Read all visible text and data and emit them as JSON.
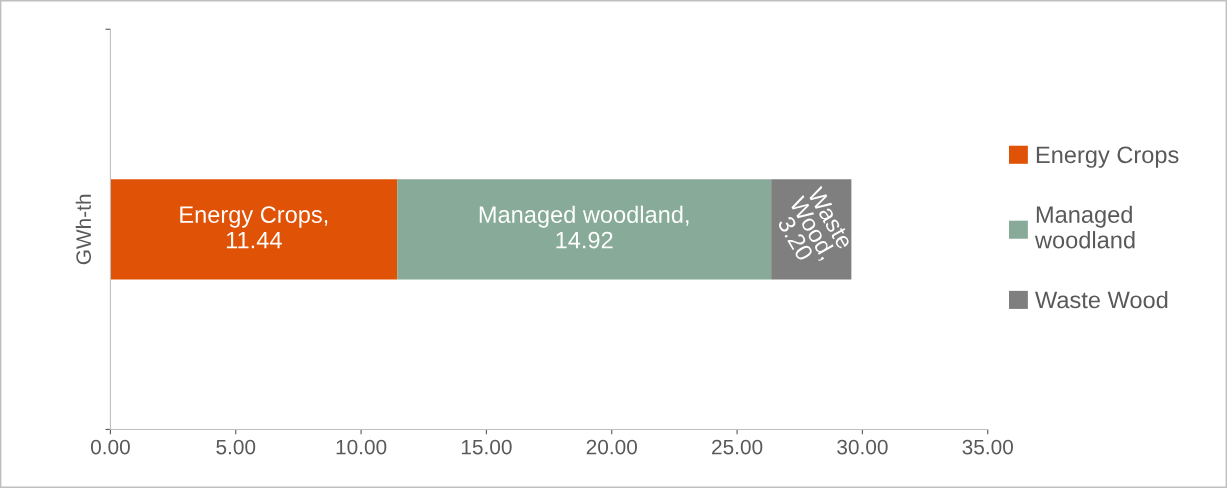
{
  "chart_data": {
    "type": "bar",
    "orientation": "horizontal",
    "stacked": true,
    "categories": [
      null
    ],
    "ylabel": "GWh-th",
    "series": [
      {
        "name": "Energy Crops",
        "color": "#e05206",
        "values": [
          11.44
        ],
        "value_labels": [
          "Energy Crops, 11.44"
        ]
      },
      {
        "name": "Managed woodland",
        "color": "#87ab98",
        "values": [
          14.92
        ],
        "value_labels": [
          "Managed woodland, 14.92"
        ]
      },
      {
        "name": "Waste Wood",
        "color": "#7f7f7f",
        "values": [
          3.2
        ],
        "value_labels": [
          "Waste Wood, 3.20"
        ]
      }
    ],
    "xlim": [
      0,
      35
    ],
    "xticks": [
      {
        "value": 0,
        "label": "0.00"
      },
      {
        "value": 5,
        "label": "5.00"
      },
      {
        "value": 10,
        "label": "10.00"
      },
      {
        "value": 15,
        "label": "15.00"
      },
      {
        "value": 20,
        "label": "20.00"
      },
      {
        "value": 25,
        "label": "25.00"
      },
      {
        "value": 30,
        "label": "30.00"
      },
      {
        "value": 35,
        "label": "35.00"
      }
    ],
    "grid": false,
    "legend": "right"
  }
}
